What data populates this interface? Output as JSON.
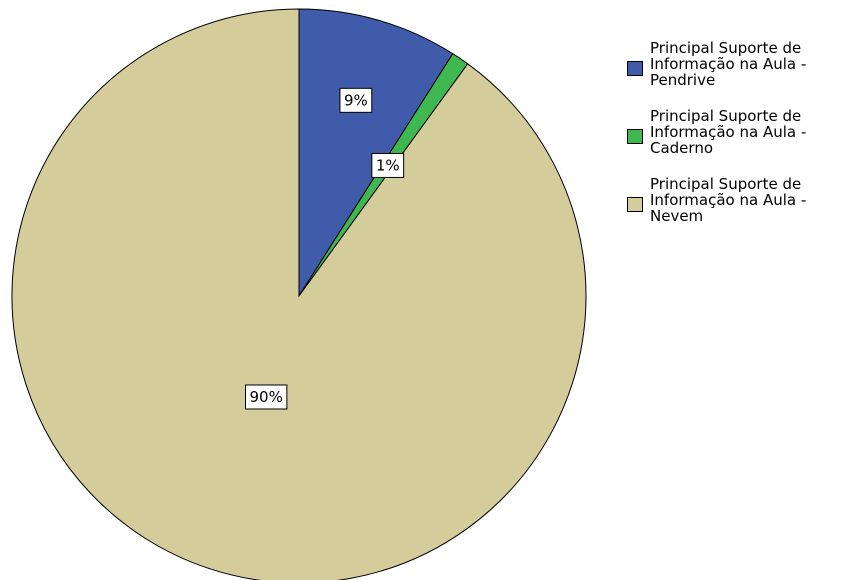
{
  "chart_data": {
    "type": "pie",
    "title": "",
    "slices": [
      {
        "label": "Principal Suporte de Informação na Aula - Pendrive",
        "value": 9,
        "display": "9%",
        "color": "#3f5ba9"
      },
      {
        "label": "Principal Suporte de Informação na Aula - Caderno",
        "value": 1,
        "display": "1%",
        "color": "#3fb94f"
      },
      {
        "label": "Principal Suporte de Informação na Aula - Nevem",
        "value": 90,
        "display": "90%",
        "color": "#d4cc9a"
      }
    ],
    "start_angle": "12 o'clock",
    "direction": "clockwise",
    "legend_position": "right"
  },
  "legend": {
    "items": [
      {
        "lines": [
          "Principal Suporte de",
          "Informação na Aula -",
          "Pendrive"
        ],
        "color": "#3f5ba9"
      },
      {
        "lines": [
          "Principal Suporte de",
          "Informação na Aula -",
          "Caderno"
        ],
        "color": "#3fb94f"
      },
      {
        "lines": [
          "Principal Suporte de",
          "Informação na Aula -",
          "Nevem"
        ],
        "color": "#d4cc9a"
      }
    ]
  }
}
